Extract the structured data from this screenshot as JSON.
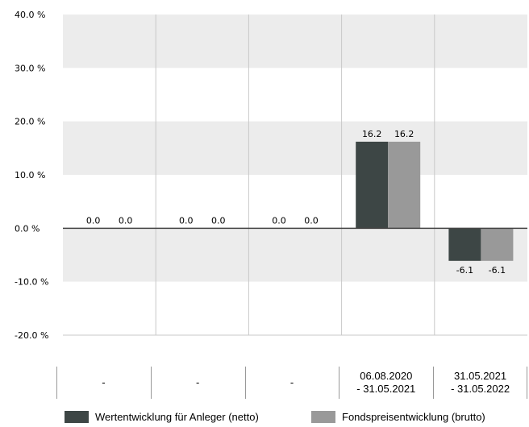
{
  "chart_data": {
    "type": "bar",
    "title": "",
    "xlabel": "",
    "ylabel": "",
    "ylim": [
      -20,
      40
    ],
    "yticks": [
      {
        "value": 40,
        "label": "40.0 %"
      },
      {
        "value": 30,
        "label": "30.0 %"
      },
      {
        "value": 20,
        "label": "20.0 %"
      },
      {
        "value": 10,
        "label": "10.0 %"
      },
      {
        "value": 0,
        "label": "0.0 %"
      },
      {
        "value": -10,
        "label": "-10.0 %"
      },
      {
        "value": -20,
        "label": "-20.0 %"
      }
    ],
    "grid": true,
    "legend_position": "bottom",
    "categories": [
      [
        "-"
      ],
      [
        "-"
      ],
      [
        "-"
      ],
      [
        "06.08.2020",
        "- 31.05.2021"
      ],
      [
        "31.05.2021",
        "- 31.05.2022"
      ]
    ],
    "series": [
      {
        "name": "Wertentwicklung für Anleger (netto)",
        "color": "#3d4645",
        "values": [
          0.0,
          0.0,
          0.0,
          16.2,
          -6.1
        ],
        "labels": [
          "0.0",
          "0.0",
          "0.0",
          "16.2",
          "-6.1"
        ]
      },
      {
        "name": "Fondspreisentwicklung (brutto)",
        "color": "#999999",
        "values": [
          0.0,
          0.0,
          0.0,
          16.2,
          -6.1
        ],
        "labels": [
          "0.0",
          "0.0",
          "0.0",
          "16.2",
          "-6.1"
        ]
      }
    ],
    "colors": {
      "band": "#ececec",
      "gridline": "#c8c8c8",
      "zeroline": "#444444"
    }
  }
}
